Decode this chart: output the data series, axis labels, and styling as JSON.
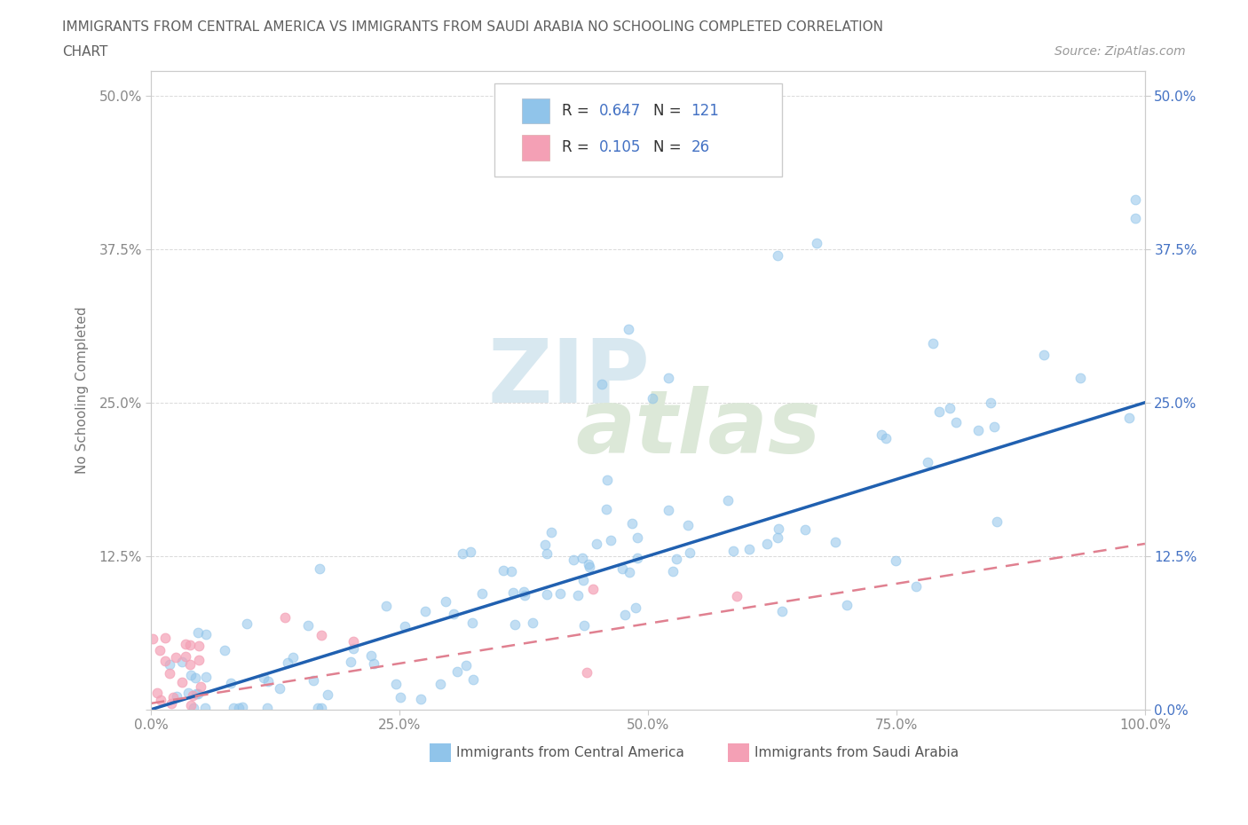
{
  "title_line1": "IMMIGRANTS FROM CENTRAL AMERICA VS IMMIGRANTS FROM SAUDI ARABIA NO SCHOOLING COMPLETED CORRELATION",
  "title_line2": "CHART",
  "source": "Source: ZipAtlas.com",
  "ylabel": "No Schooling Completed",
  "xlim": [
    0.0,
    1.0
  ],
  "ylim": [
    0.0,
    0.52
  ],
  "xticks": [
    0.0,
    0.25,
    0.5,
    0.75,
    1.0
  ],
  "xticklabels": [
    "0.0%",
    "25.0%",
    "50.0%",
    "75.0%",
    "100.0%"
  ],
  "yticks": [
    0.0,
    0.125,
    0.25,
    0.375,
    0.5
  ],
  "yticklabels_left": [
    "",
    "12.5%",
    "25.0%",
    "37.5%",
    "50.0%"
  ],
  "yticklabels_right": [
    "0.0%",
    "12.5%",
    "25.0%",
    "37.5%",
    "50.0%"
  ],
  "R_central": 0.647,
  "N_central": 121,
  "R_saudi": 0.105,
  "N_saudi": 26,
  "color_central": "#90c4ea",
  "color_saudi": "#f4a0b5",
  "color_line_central": "#2060b0",
  "color_line_saudi": "#e08090",
  "color_text_blue": "#4472c4",
  "watermark_top": "ZIP",
  "watermark_bot": "atlas",
  "background_color": "#ffffff",
  "grid_color": "#d0d0d0",
  "title_color": "#606060",
  "legend_label_color": "#333333",
  "tick_color": "#888888"
}
